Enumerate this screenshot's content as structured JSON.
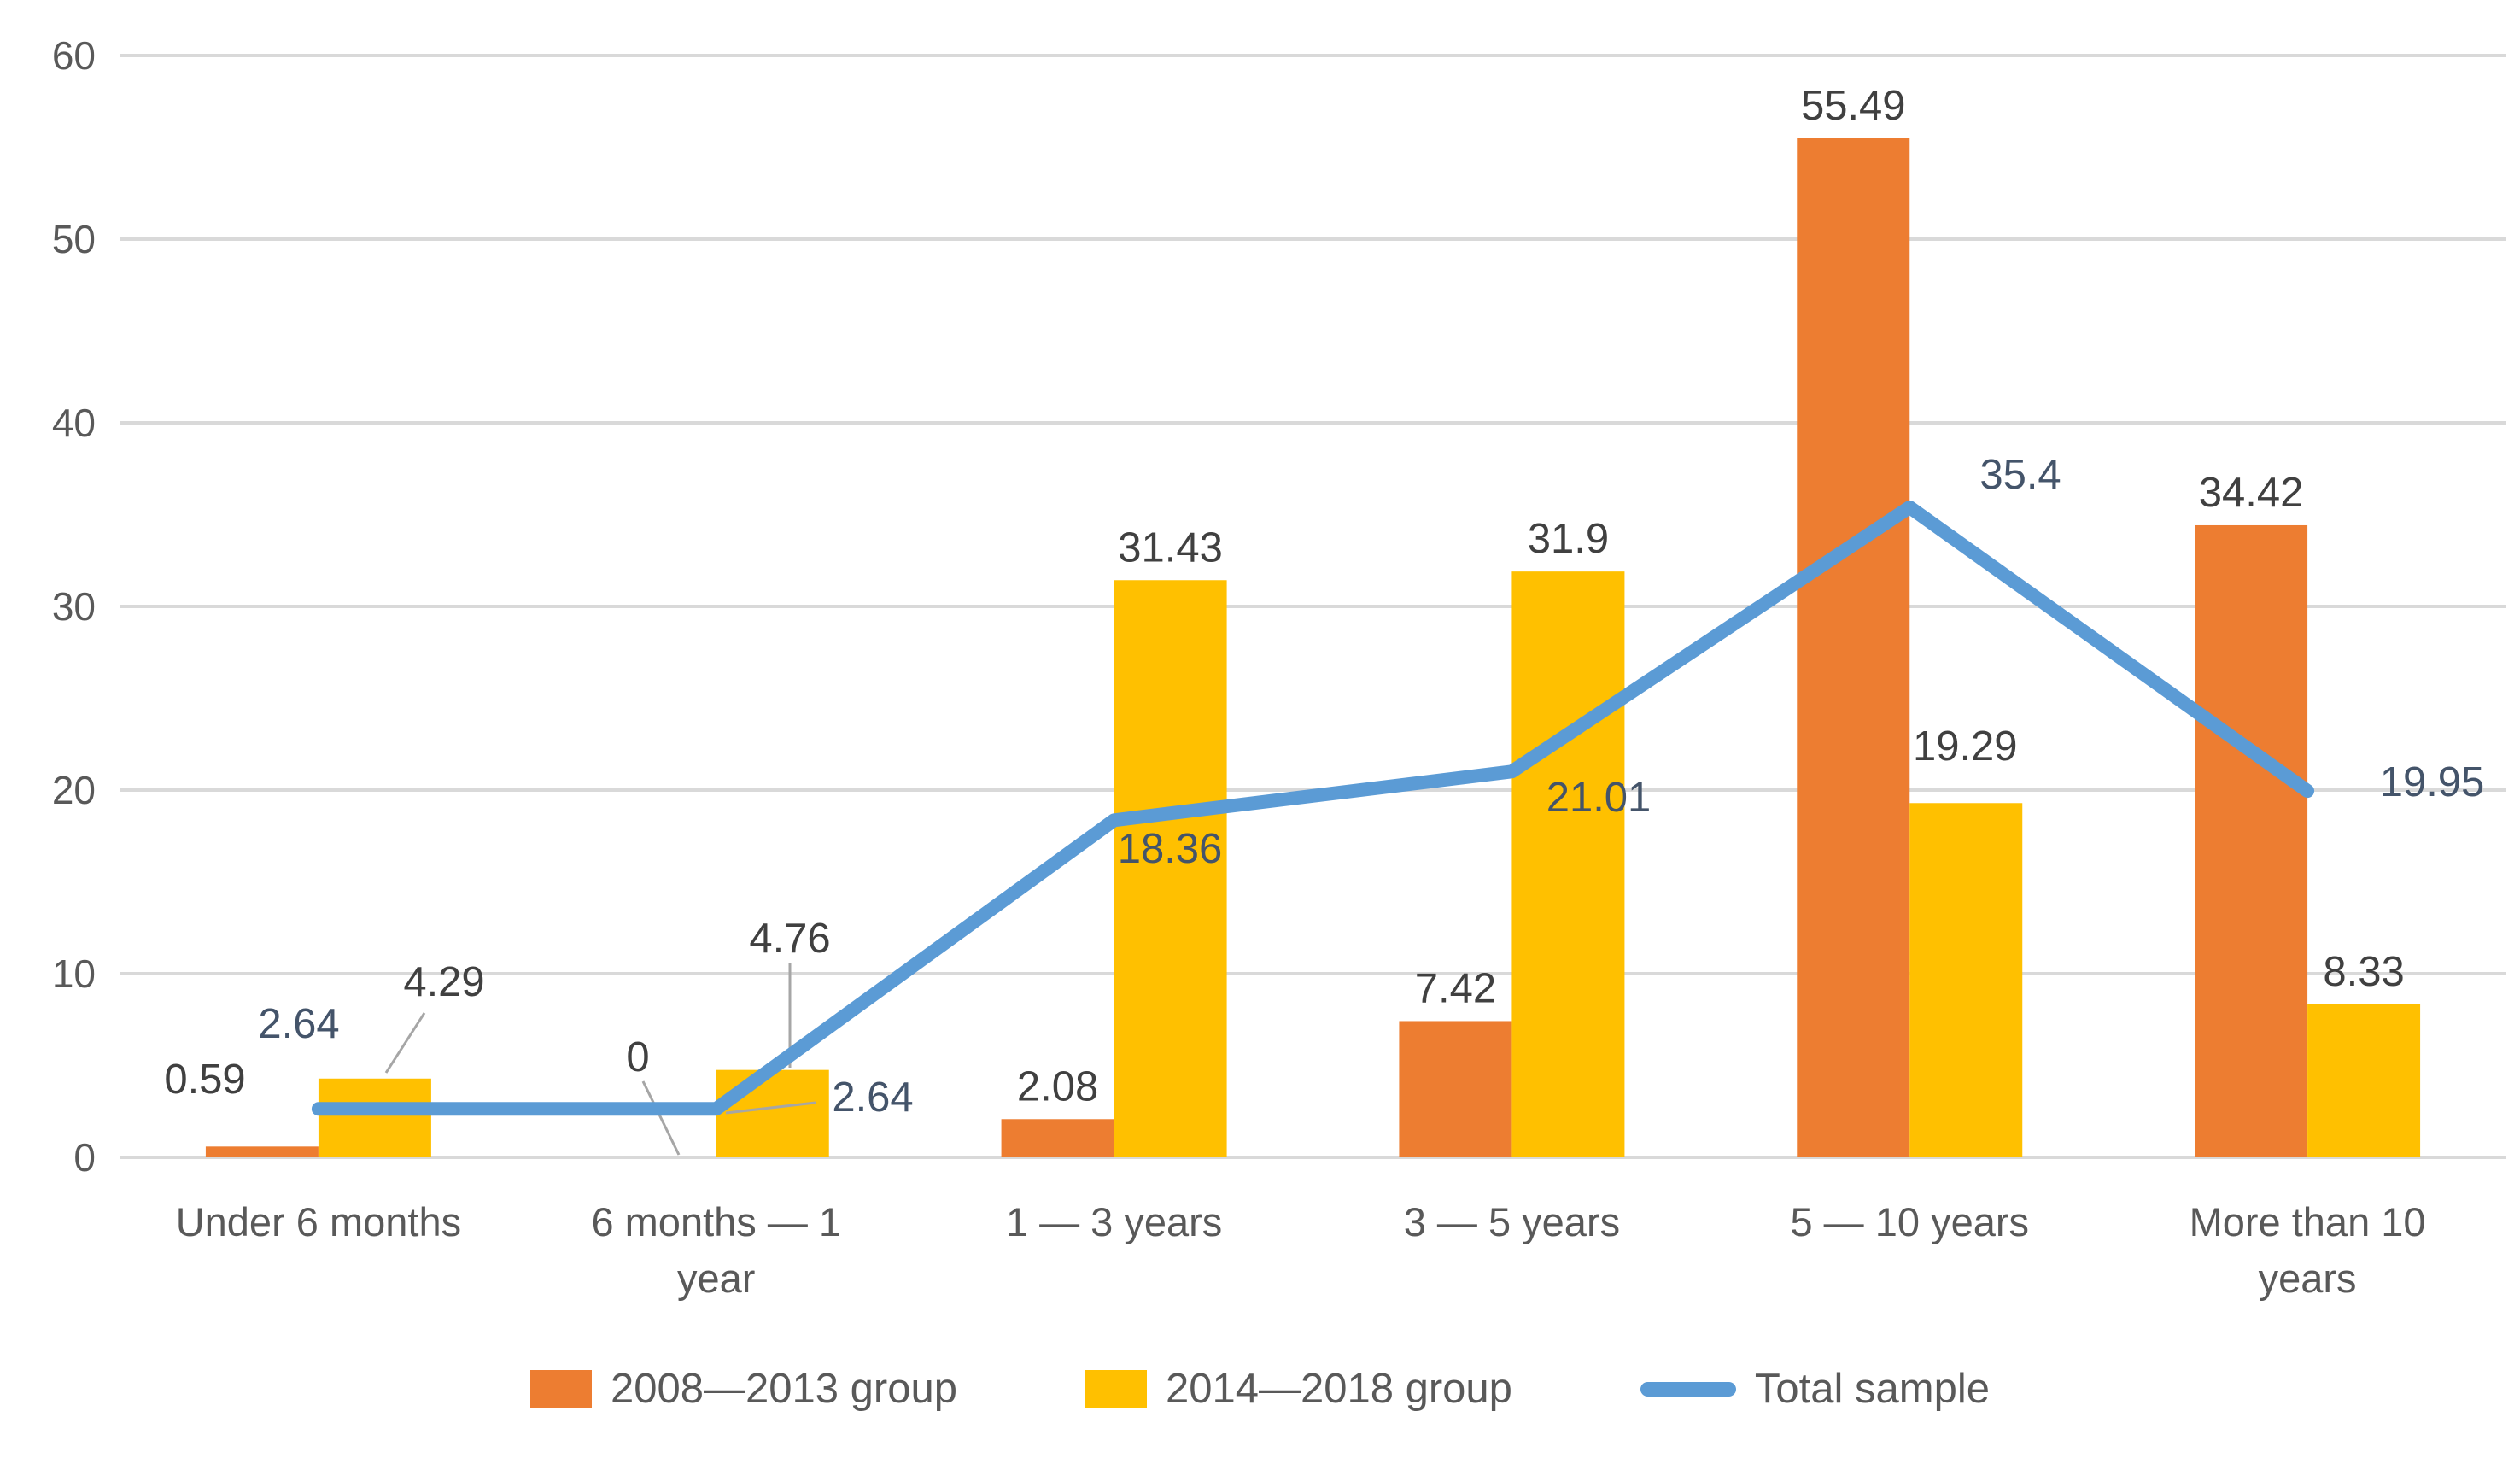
{
  "chart_data": {
    "type": "combo-bar-line",
    "title": "",
    "categories": [
      "Under 6 months",
      "6 months — 1 year",
      "1 — 3 years",
      "3 — 5 years",
      "5 — 10 years",
      "More than 10 years"
    ],
    "category_lines": [
      [
        "Under 6 months"
      ],
      [
        "6 months — 1",
        "year"
      ],
      [
        "1 — 3 years"
      ],
      [
        "3 — 5 years"
      ],
      [
        "5 — 10 years"
      ],
      [
        "More than 10",
        "years"
      ]
    ],
    "series": [
      {
        "name": "2008—2013 group",
        "chart_type": "bar",
        "color": "#ED7D31",
        "values": [
          0.59,
          0,
          2.08,
          7.42,
          55.49,
          34.42
        ],
        "data_labels": [
          "0.59",
          "0",
          "2.08",
          "7.42",
          "55.49",
          "34.42"
        ]
      },
      {
        "name": "2014—2018 group",
        "chart_type": "bar",
        "color": "#FFC000",
        "values": [
          4.29,
          4.76,
          31.43,
          31.9,
          19.29,
          8.33
        ],
        "data_labels": [
          "4.29",
          "4.76",
          "31.43",
          "31.9",
          "19.29",
          "8.33"
        ]
      },
      {
        "name": "Total sample",
        "chart_type": "line",
        "color": "#5B9BD5",
        "values": [
          2.64,
          2.64,
          18.36,
          21.01,
          35.4,
          19.95
        ],
        "data_labels": [
          "2.64",
          "2.64",
          "18.36",
          "21.01",
          "35.4",
          "19.95"
        ]
      }
    ],
    "y_axis": {
      "min": 0,
      "max": 60,
      "step": 10,
      "tick_labels": [
        "0",
        "10",
        "20",
        "30",
        "40",
        "50",
        "60"
      ]
    },
    "grid": true,
    "legend_position": "bottom",
    "colors": {
      "gridline": "#D9D9D9",
      "axis_text": "#595959",
      "bar_label_text": "#404040",
      "line_label_text": "#44546A",
      "leader_line": "#A6A6A6",
      "background": "#FFFFFF"
    },
    "legend": {
      "items": [
        {
          "label": "2008—2013 group",
          "marker": "square",
          "color": "#ED7D31"
        },
        {
          "label": "2014—2018 group",
          "marker": "square",
          "color": "#FFC000"
        },
        {
          "label": "Total sample",
          "marker": "line",
          "color": "#5B9BD5"
        }
      ]
    }
  }
}
